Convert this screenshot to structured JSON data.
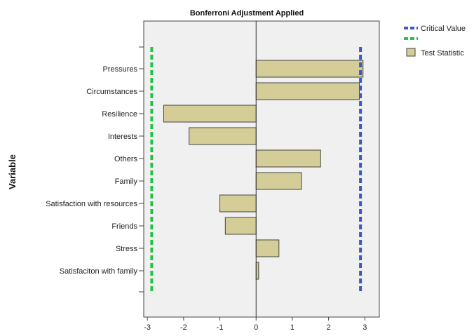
{
  "chart_data": {
    "type": "bar",
    "orientation": "horizontal",
    "title": "Bonferroni Adjustment Applied",
    "xlabel": "",
    "ylabel": "Variable",
    "xlim": [
      -3.1,
      3.4
    ],
    "xticks": [
      -3,
      -2,
      -1,
      0,
      1,
      2,
      3
    ],
    "grid": false,
    "legend_position": "top-right",
    "categories": [
      "Pressures",
      "Circumstances",
      "Resilience",
      "Interests",
      "Others",
      "Family",
      "Satisfaction with resources",
      "Friends",
      "Stress",
      "Satisfaciton with family"
    ],
    "series": [
      {
        "name": "Test Statistic",
        "values": [
          2.95,
          2.85,
          -2.55,
          -1.85,
          1.78,
          1.25,
          -1.0,
          -0.85,
          0.63,
          0.07
        ],
        "color": "#d4cd97"
      }
    ],
    "critical_value": {
      "name": "Critical Value",
      "lower": -2.88,
      "upper": 2.88,
      "lower_color": "#27c24c",
      "upper_color": "#3d57c8"
    }
  }
}
